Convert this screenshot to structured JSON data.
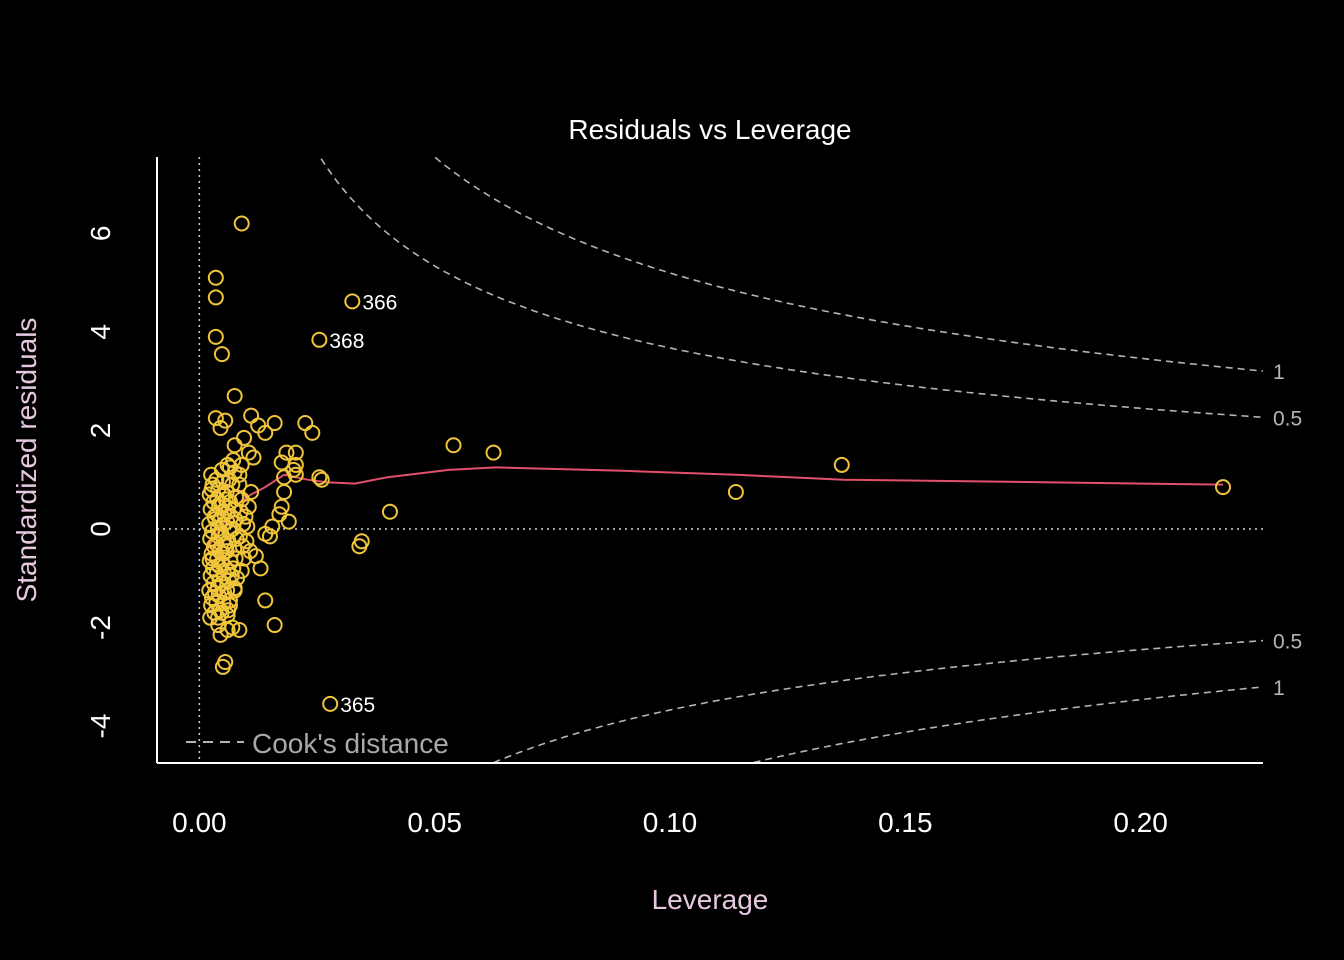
{
  "colors": {
    "background": "#000000",
    "axis": "#ffffff",
    "title": "#ffffff",
    "axis_label": "#e6c8e0",
    "points": "#f0c53a",
    "smoother": "#e0506a",
    "cooks": "#b4b4b4",
    "reference": "#d0d0d0"
  },
  "chart_data": {
    "type": "scatter",
    "title": "Residuals vs Leverage",
    "xlabel": "Leverage",
    "ylabel": "Standardized residuals",
    "xlim": [
      -0.009,
      0.226
    ],
    "ylim": [
      -4.75,
      7.55
    ],
    "x_ticks": [
      0.0,
      0.05,
      0.1,
      0.15,
      0.2
    ],
    "x_tick_labels": [
      "0.00",
      "0.05",
      "0.10",
      "0.15",
      "0.20"
    ],
    "y_ticks": [
      -4,
      -2,
      0,
      2,
      4,
      6
    ],
    "y_tick_labels": [
      "-4",
      "-2",
      "0",
      "2",
      "4",
      "6"
    ],
    "reference_lines": {
      "h": 0,
      "v": 0
    },
    "legend": {
      "position": "bottom-left",
      "label": "Cook's distance",
      "style": "dashed"
    },
    "cooks_distance": {
      "levels": [
        0.5,
        1
      ],
      "level_labels": [
        "0.5",
        "1"
      ],
      "n_params": 3
    },
    "labeled_points": [
      {
        "label": "366",
        "x": 0.0325,
        "y": 4.62
      },
      {
        "label": "368",
        "x": 0.0255,
        "y": 3.84
      },
      {
        "label": "365",
        "x": 0.0278,
        "y": -3.55
      }
    ],
    "points": [
      [
        0.009,
        6.2
      ],
      [
        0.0035,
        5.1
      ],
      [
        0.0035,
        4.7
      ],
      [
        0.0035,
        3.9
      ],
      [
        0.0048,
        3.55
      ],
      [
        0.0075,
        2.7
      ],
      [
        0.0035,
        2.25
      ],
      [
        0.0045,
        2.05
      ],
      [
        0.0055,
        2.2
      ],
      [
        0.011,
        2.3
      ],
      [
        0.0125,
        2.1
      ],
      [
        0.014,
        1.95
      ],
      [
        0.016,
        2.15
      ],
      [
        0.0225,
        2.15
      ],
      [
        0.024,
        1.95
      ],
      [
        0.0095,
        1.85
      ],
      [
        0.0075,
        1.7
      ],
      [
        0.0105,
        1.55
      ],
      [
        0.0185,
        1.55
      ],
      [
        0.0205,
        1.55
      ],
      [
        0.0175,
        1.35
      ],
      [
        0.0205,
        1.3
      ],
      [
        0.02,
        1.2
      ],
      [
        0.0205,
        1.1
      ],
      [
        0.0255,
        1.05
      ],
      [
        0.026,
        1.0
      ],
      [
        0.009,
        1.3
      ],
      [
        0.0115,
        1.45
      ],
      [
        0.0065,
        1.25
      ],
      [
        0.0085,
        1.1
      ],
      [
        0.018,
        1.05
      ],
      [
        0.018,
        0.75
      ],
      [
        0.0175,
        0.45
      ],
      [
        0.019,
        0.15
      ],
      [
        0.017,
        0.3
      ],
      [
        0.0155,
        0.05
      ],
      [
        0.015,
        -0.15
      ],
      [
        0.014,
        -0.1
      ],
      [
        0.012,
        -0.55
      ],
      [
        0.0095,
        -0.6
      ],
      [
        0.013,
        -0.8
      ],
      [
        0.009,
        -0.85
      ],
      [
        0.014,
        -1.45
      ],
      [
        0.016,
        -1.95
      ],
      [
        0.0085,
        -2.05
      ],
      [
        0.006,
        -2.05
      ],
      [
        0.004,
        -1.95
      ],
      [
        0.006,
        -1.75
      ],
      [
        0.0075,
        -1.25
      ],
      [
        0.0065,
        -1.55
      ],
      [
        0.0055,
        -2.7
      ],
      [
        0.005,
        -2.8
      ],
      [
        0.0045,
        -2.15
      ],
      [
        0.007,
        -2.0
      ],
      [
        0.054,
        1.7
      ],
      [
        0.0625,
        1.55
      ],
      [
        0.0405,
        0.35
      ],
      [
        0.0345,
        -0.25
      ],
      [
        0.034,
        -0.35
      ],
      [
        0.114,
        0.75
      ],
      [
        0.1365,
        1.3
      ],
      [
        0.2175,
        0.85
      ],
      [
        0.0025,
        1.1
      ],
      [
        0.0028,
        0.9
      ],
      [
        0.0022,
        0.7
      ],
      [
        0.003,
        0.55
      ],
      [
        0.0024,
        0.4
      ],
      [
        0.0032,
        0.25
      ],
      [
        0.0021,
        0.1
      ],
      [
        0.0027,
        -0.05
      ],
      [
        0.0023,
        -0.2
      ],
      [
        0.0031,
        -0.35
      ],
      [
        0.0026,
        -0.5
      ],
      [
        0.0022,
        -0.65
      ],
      [
        0.0029,
        -0.8
      ],
      [
        0.0024,
        -0.95
      ],
      [
        0.003,
        -1.1
      ],
      [
        0.0021,
        -1.25
      ],
      [
        0.0027,
        -1.4
      ],
      [
        0.0025,
        -1.55
      ],
      [
        0.0032,
        -1.7
      ],
      [
        0.0023,
        -1.8
      ],
      [
        0.0036,
        1.0
      ],
      [
        0.004,
        0.8
      ],
      [
        0.0038,
        0.6
      ],
      [
        0.0042,
        0.45
      ],
      [
        0.0037,
        0.3
      ],
      [
        0.0043,
        0.15
      ],
      [
        0.0039,
        0.0
      ],
      [
        0.0041,
        -0.15
      ],
      [
        0.0036,
        -0.3
      ],
      [
        0.0044,
        -0.45
      ],
      [
        0.0038,
        -0.6
      ],
      [
        0.0042,
        -0.75
      ],
      [
        0.0037,
        -0.9
      ],
      [
        0.0043,
        -1.05
      ],
      [
        0.0039,
        -1.2
      ],
      [
        0.0041,
        -1.35
      ],
      [
        0.0036,
        -1.5
      ],
      [
        0.0044,
        -1.65
      ],
      [
        0.004,
        -1.8
      ],
      [
        0.0048,
        1.2
      ],
      [
        0.005,
        0.95
      ],
      [
        0.0052,
        0.7
      ],
      [
        0.0049,
        0.5
      ],
      [
        0.0053,
        0.3
      ],
      [
        0.0051,
        0.1
      ],
      [
        0.0047,
        -0.1
      ],
      [
        0.0054,
        -0.3
      ],
      [
        0.005,
        -0.5
      ],
      [
        0.0048,
        -0.7
      ],
      [
        0.0052,
        -0.9
      ],
      [
        0.0049,
        -1.1
      ],
      [
        0.0053,
        -1.3
      ],
      [
        0.0051,
        -1.5
      ],
      [
        0.0047,
        -1.7
      ],
      [
        0.006,
        1.3
      ],
      [
        0.0063,
        1.0
      ],
      [
        0.0058,
        0.75
      ],
      [
        0.0065,
        0.55
      ],
      [
        0.0061,
        0.35
      ],
      [
        0.0059,
        0.15
      ],
      [
        0.0064,
        -0.05
      ],
      [
        0.0062,
        -0.25
      ],
      [
        0.0058,
        -0.45
      ],
      [
        0.0066,
        -0.65
      ],
      [
        0.006,
        -0.85
      ],
      [
        0.0063,
        -1.05
      ],
      [
        0.0059,
        -1.25
      ],
      [
        0.0065,
        -1.45
      ],
      [
        0.0061,
        -1.65
      ],
      [
        0.0072,
        1.4
      ],
      [
        0.0075,
        1.15
      ],
      [
        0.007,
        0.9
      ],
      [
        0.0078,
        0.65
      ],
      [
        0.0073,
        0.4
      ],
      [
        0.0076,
        0.2
      ],
      [
        0.0071,
        0.0
      ],
      [
        0.0079,
        -0.2
      ],
      [
        0.0074,
        -0.4
      ],
      [
        0.0077,
        -0.6
      ],
      [
        0.0072,
        -0.8
      ],
      [
        0.008,
        -1.0
      ],
      [
        0.0075,
        -1.2
      ],
      [
        0.0085,
        0.9
      ],
      [
        0.009,
        0.6
      ],
      [
        0.0088,
        0.35
      ],
      [
        0.0093,
        0.1
      ],
      [
        0.0086,
        -0.15
      ],
      [
        0.0092,
        -0.35
      ],
      [
        0.0098,
        0.25
      ],
      [
        0.0102,
        0.05
      ],
      [
        0.0105,
        0.45
      ],
      [
        0.011,
        0.75
      ],
      [
        0.01,
        -0.25
      ],
      [
        0.0108,
        -0.45
      ],
      [
        0.0026,
        0.8
      ],
      [
        0.0034,
        0.2
      ],
      [
        0.0028,
        -0.6
      ],
      [
        0.0033,
        -1.3
      ],
      [
        0.0056,
        0.6
      ],
      [
        0.0057,
        -0.35
      ],
      [
        0.0068,
        0.25
      ],
      [
        0.0069,
        -0.95
      ]
    ],
    "smoother": [
      [
        0.002,
        -0.35
      ],
      [
        0.005,
        0.1
      ],
      [
        0.008,
        0.5
      ],
      [
        0.011,
        0.7
      ],
      [
        0.014,
        0.85
      ],
      [
        0.018,
        1.1
      ],
      [
        0.023,
        1.0
      ],
      [
        0.027,
        0.95
      ],
      [
        0.033,
        0.92
      ],
      [
        0.04,
        1.05
      ],
      [
        0.053,
        1.2
      ],
      [
        0.063,
        1.25
      ],
      [
        0.09,
        1.18
      ],
      [
        0.114,
        1.1
      ],
      [
        0.137,
        1.0
      ],
      [
        0.2175,
        0.9
      ]
    ]
  }
}
